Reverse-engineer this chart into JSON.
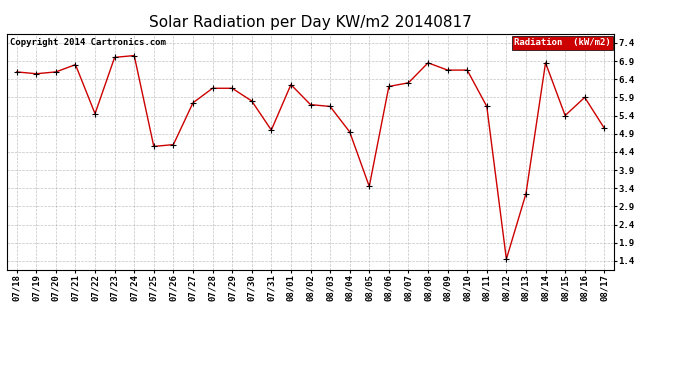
{
  "title": "Solar Radiation per Day KW/m2 20140817",
  "copyright": "Copyright 2014 Cartronics.com",
  "legend_label": "Radiation  (kW/m2)",
  "x_labels": [
    "07/18",
    "07/19",
    "07/20",
    "07/21",
    "07/22",
    "07/23",
    "07/24",
    "07/25",
    "07/26",
    "07/27",
    "07/28",
    "07/29",
    "07/30",
    "07/31",
    "08/01",
    "08/02",
    "08/03",
    "08/04",
    "08/05",
    "08/06",
    "08/07",
    "08/08",
    "08/09",
    "08/10",
    "08/11",
    "08/12",
    "08/13",
    "08/14",
    "08/15",
    "08/16",
    "08/17"
  ],
  "y_values": [
    6.6,
    6.55,
    6.6,
    6.8,
    5.45,
    7.0,
    7.05,
    4.55,
    4.6,
    5.75,
    6.15,
    6.15,
    5.8,
    5.0,
    6.25,
    5.7,
    5.65,
    4.95,
    3.45,
    6.2,
    6.3,
    6.85,
    6.65,
    6.65,
    5.65,
    1.45,
    3.25,
    6.85,
    5.4,
    5.9,
    5.05
  ],
  "ylim_min": 1.15,
  "ylim_max": 7.65,
  "yticks": [
    1.4,
    1.9,
    2.4,
    2.9,
    3.4,
    3.9,
    4.4,
    4.9,
    5.4,
    5.9,
    6.4,
    6.9,
    7.4
  ],
  "line_color": "#cc0000",
  "marker_color": "#000000",
  "bg_color": "#ffffff",
  "plot_bg_color": "#ffffff",
  "grid_color": "#aaaaaa",
  "title_fontsize": 11,
  "tick_fontsize": 6.5,
  "copyright_fontsize": 6.5,
  "legend_bg_color": "#cc0000",
  "legend_text_color": "#ffffff",
  "fig_width": 6.9,
  "fig_height": 3.75,
  "dpi": 100
}
